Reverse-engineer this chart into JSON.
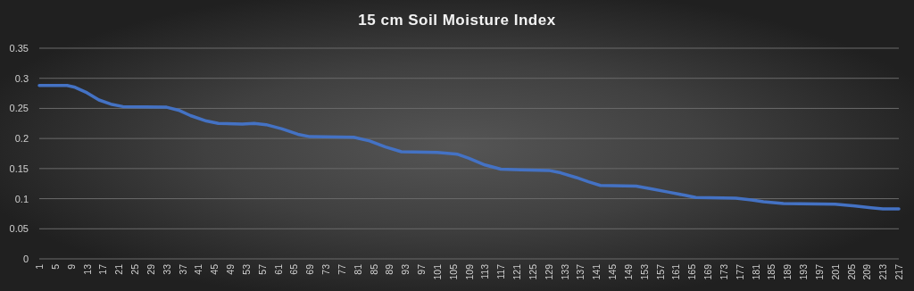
{
  "chart_data": {
    "type": "line",
    "title": "15 cm Soil Moisture Index",
    "x": [
      1,
      5,
      8,
      10,
      13,
      16,
      19,
      22,
      33,
      36,
      39,
      43,
      46,
      52,
      55,
      58,
      62,
      66,
      69,
      80,
      84,
      88,
      92,
      101,
      106,
      109,
      113,
      117,
      122,
      129,
      132,
      136,
      139,
      142,
      151,
      155,
      159,
      163,
      166,
      176,
      180,
      183,
      188,
      201,
      206,
      210,
      213,
      217
    ],
    "series": [
      {
        "color": "#4472c4",
        "values": [
          0.288,
          0.288,
          0.288,
          0.285,
          0.276,
          0.264,
          0.257,
          0.253,
          0.252,
          0.247,
          0.238,
          0.229,
          0.225,
          0.224,
          0.225,
          0.223,
          0.216,
          0.207,
          0.203,
          0.202,
          0.196,
          0.186,
          0.178,
          0.177,
          0.174,
          0.167,
          0.156,
          0.149,
          0.148,
          0.147,
          0.143,
          0.135,
          0.128,
          0.122,
          0.121,
          0.116,
          0.111,
          0.106,
          0.102,
          0.101,
          0.098,
          0.095,
          0.092,
          0.091,
          0.088,
          0.085,
          0.083,
          0.083
        ]
      }
    ],
    "xlim": [
      1,
      217
    ],
    "xticks": [
      1,
      5,
      9,
      13,
      17,
      21,
      25,
      29,
      33,
      37,
      41,
      45,
      49,
      53,
      57,
      61,
      65,
      69,
      73,
      77,
      81,
      85,
      89,
      93,
      97,
      101,
      105,
      109,
      113,
      117,
      121,
      125,
      129,
      133,
      137,
      141,
      145,
      149,
      153,
      157,
      161,
      165,
      169,
      173,
      177,
      181,
      185,
      189,
      193,
      197,
      201,
      205,
      209,
      213,
      217
    ],
    "ylim": [
      0,
      0.35
    ],
    "yticks": [
      0,
      0.05,
      0.1,
      0.15,
      0.2,
      0.25,
      0.3,
      0.35
    ],
    "grid": "y",
    "marker": "none",
    "line_style": "solid"
  }
}
